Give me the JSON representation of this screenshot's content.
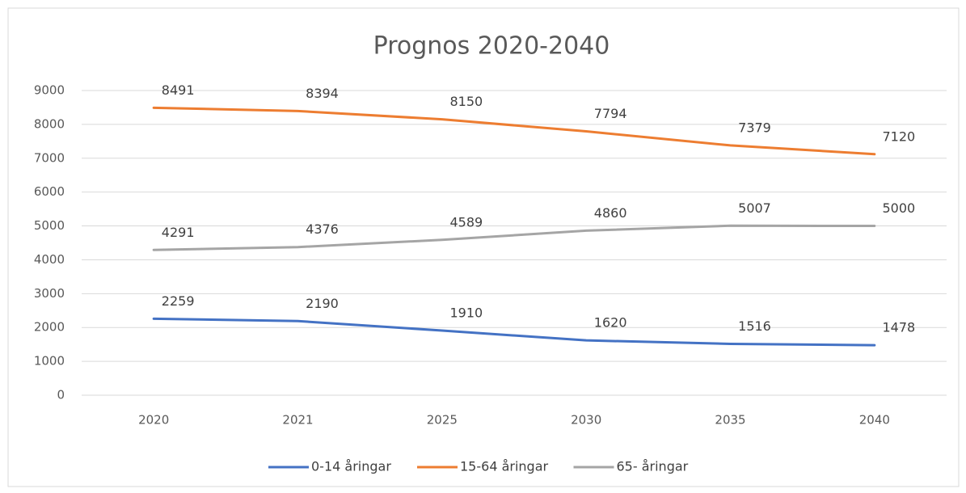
{
  "chart_data": {
    "type": "line",
    "title": "Prognos 2020-2040",
    "categories": [
      "2020",
      "2021",
      "2025",
      "2030",
      "2035",
      "2040"
    ],
    "series": [
      {
        "name": "0-14 åringar",
        "color": "#4472c4",
        "values": [
          2259,
          2190,
          1910,
          1620,
          1516,
          1478
        ]
      },
      {
        "name": "15-64 åringar",
        "color": "#ed7d31",
        "values": [
          8491,
          8394,
          8150,
          7794,
          7379,
          7120
        ]
      },
      {
        "name": "65- åringar",
        "color": "#a5a5a5",
        "values": [
          4291,
          4376,
          4589,
          4860,
          5007,
          5000
        ]
      }
    ],
    "ylim": [
      0,
      9000
    ],
    "yticks": [
      0,
      1000,
      2000,
      3000,
      4000,
      5000,
      6000,
      7000,
      8000,
      9000
    ],
    "grid": true,
    "legend": "bottom"
  }
}
